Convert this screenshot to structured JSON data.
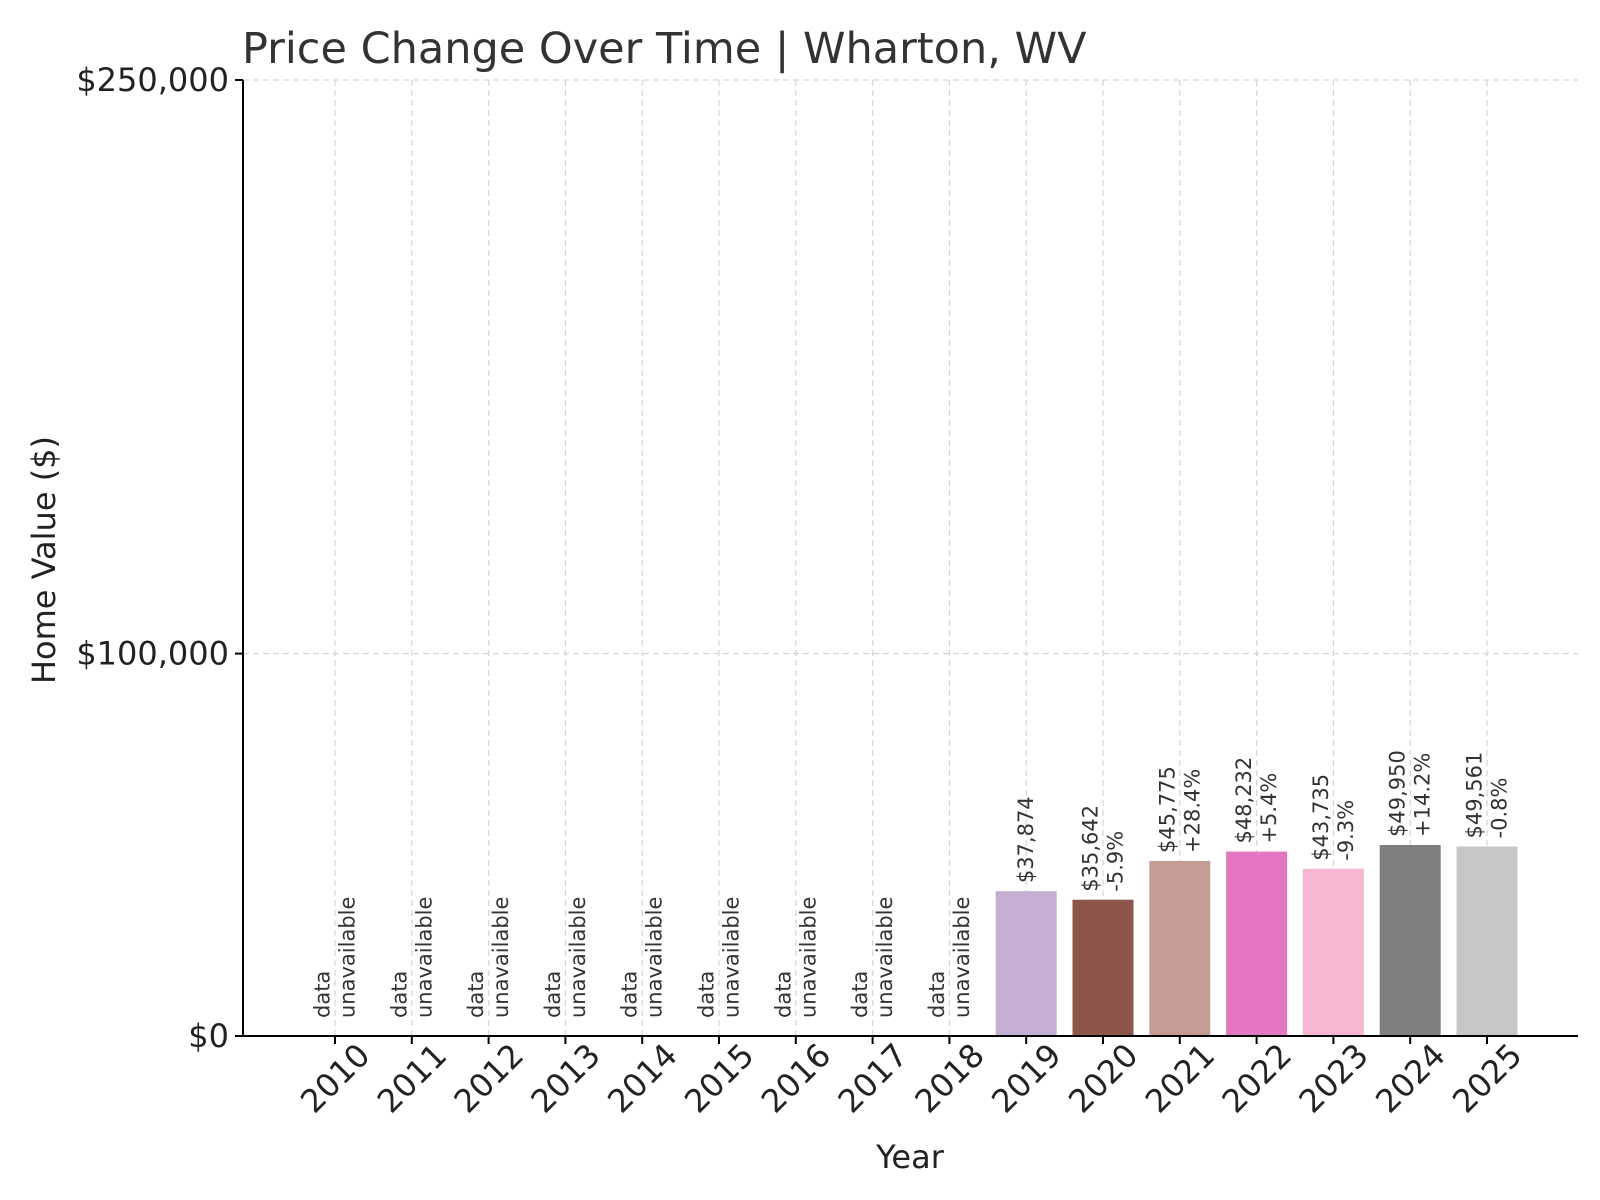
{
  "chart_data": {
    "type": "bar",
    "title": "Price Change Over Time | Wharton, WV",
    "xlabel": "Year",
    "ylabel": "Home Value ($)",
    "ylim": [
      0,
      250000
    ],
    "yticks": [
      0,
      100000,
      250000
    ],
    "ytick_labels": [
      "$0",
      "$100,000",
      "$250,000"
    ],
    "grid": true,
    "categories": [
      "2010",
      "2011",
      "2012",
      "2013",
      "2014",
      "2015",
      "2016",
      "2017",
      "2018",
      "2019",
      "2020",
      "2021",
      "2022",
      "2023",
      "2024",
      "2025"
    ],
    "values": [
      null,
      null,
      null,
      null,
      null,
      null,
      null,
      null,
      null,
      37874,
      35642,
      45775,
      48232,
      43735,
      49950,
      49561
    ],
    "bar_labels": [
      [
        "data",
        "unavailable"
      ],
      [
        "data",
        "unavailable"
      ],
      [
        "data",
        "unavailable"
      ],
      [
        "data",
        "unavailable"
      ],
      [
        "data",
        "unavailable"
      ],
      [
        "data",
        "unavailable"
      ],
      [
        "data",
        "unavailable"
      ],
      [
        "data",
        "unavailable"
      ],
      [
        "data",
        "unavailable"
      ],
      [
        "$37,874"
      ],
      [
        "$35,642",
        "-5.9%"
      ],
      [
        "$45,775",
        "+28.4%"
      ],
      [
        "$48,232",
        "+5.4%"
      ],
      [
        "$43,735",
        "-9.3%"
      ],
      [
        "$49,950",
        "+14.2%"
      ],
      [
        "$49,561",
        "-0.8%"
      ]
    ],
    "colors": [
      "#c4aed4",
      "#c4aed4",
      "#c4aed4",
      "#c4aed4",
      "#c4aed4",
      "#c4aed4",
      "#c4aed4",
      "#c4aed4",
      "#c4aed4",
      "#c4aed4",
      "#8c564b",
      "#c49c94",
      "#e377c2",
      "#f7b6d2",
      "#7f7f7f",
      "#c7c7c7"
    ]
  }
}
